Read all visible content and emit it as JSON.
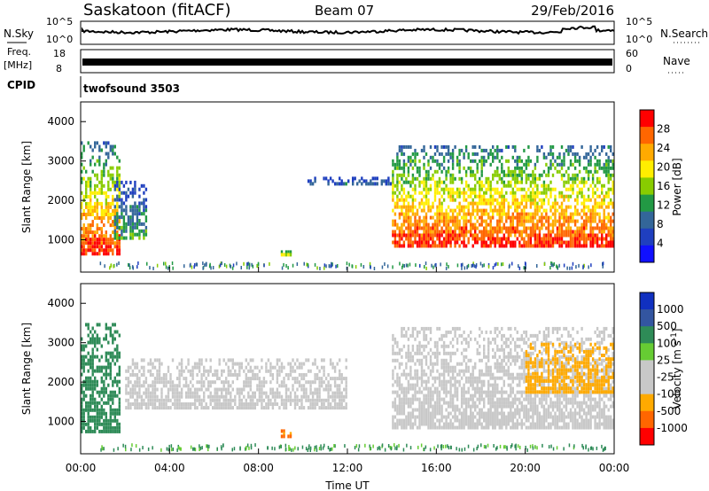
{
  "header": {
    "station": "Saskatoon (fitACF)",
    "beam": "Beam 07",
    "date": "29/Feb/2016"
  },
  "panels": {
    "nsky": {
      "label": "N.Sky",
      "ticks": [
        "10^5",
        "10^0"
      ],
      "right_label": "N.Search",
      "right_ticks": [
        "10^5",
        "10^0"
      ]
    },
    "freq": {
      "label_top": "Freq.",
      "label_unit": "[MHz]",
      "ticks": [
        "18",
        "8"
      ],
      "right_label": "Nave",
      "right_ticks": [
        "60",
        "0"
      ]
    },
    "cpid": {
      "label": "CPID",
      "program": "twofsound 3503"
    }
  },
  "chart_data": [
    {
      "type": "heatmap",
      "name": "power",
      "ylabel": "Slant Range [km]",
      "ylim": [
        180,
        4500
      ],
      "yticks": [
        "4000",
        "3000",
        "2000",
        "1000"
      ],
      "colorbar_label": "Power [dB]",
      "colorbar_ticks": [
        "28",
        "24",
        "20",
        "16",
        "12",
        "8",
        "4"
      ],
      "colorbar_colors": [
        "#ff0000",
        "#ff6600",
        "#ffaa00",
        "#ffee00",
        "#88cc00",
        "#229944",
        "#336699",
        "#1f3fbf",
        "#1010ff"
      ],
      "features": [
        {
          "t_start": 0.0,
          "t_end": 1.8,
          "range_min": 600,
          "range_max": 3500,
          "peak_db": 28
        },
        {
          "t_start": 1.5,
          "t_end": 3.0,
          "range_min": 1000,
          "range_max": 2500,
          "peak_db": 12
        },
        {
          "t_start": 9.0,
          "t_end": 9.5,
          "range_min": 600,
          "range_max": 800,
          "peak_db": 20
        },
        {
          "t_start": 10.0,
          "t_end": 14.0,
          "range_min": 2400,
          "range_max": 2600,
          "peak_db": 8
        },
        {
          "t_start": 14.0,
          "t_end": 24.0,
          "range_min": 800,
          "range_max": 3400,
          "peak_db": 28
        }
      ]
    },
    {
      "type": "heatmap",
      "name": "velocity",
      "ylabel": "Slant Range [km]",
      "ylim": [
        180,
        4500
      ],
      "yticks": [
        "4000",
        "3000",
        "2000",
        "1000"
      ],
      "xlabel": "Time UT",
      "xticks": [
        "00:00",
        "04:00",
        "08:00",
        "12:00",
        "16:00",
        "20:00",
        "00:00"
      ],
      "xlim": [
        0,
        24
      ],
      "colorbar_label": "Velocity",
      "colorbar_unit": "[m s",
      "colorbar_unit_sup": "-1",
      "colorbar_unit_end": "]",
      "colorbar_ticks": [
        "1000",
        "500",
        "100",
        "25",
        "-25",
        "-100",
        "-500",
        "-1000"
      ],
      "colorbar_colors": [
        "#1030c0",
        "#3355a0",
        "#2e8b57",
        "#66cc33",
        "#c8c8c8",
        "#c8c8c8",
        "#ffaa00",
        "#ff6600",
        "#ff0000"
      ],
      "features": [
        {
          "t_start": 0.0,
          "t_end": 1.8,
          "range_min": 700,
          "range_max": 3500,
          "velocity_ms": 100
        },
        {
          "t_start": 2.0,
          "t_end": 12.0,
          "range_min": 1300,
          "range_max": 2600,
          "velocity_ms": 0
        },
        {
          "t_start": 9.0,
          "t_end": 9.5,
          "range_min": 600,
          "range_max": 800,
          "velocity_ms": -500
        },
        {
          "t_start": 14.0,
          "t_end": 24.0,
          "range_min": 800,
          "range_max": 3400,
          "velocity_ms": 0
        },
        {
          "t_start": 20.0,
          "t_end": 24.0,
          "range_min": 1700,
          "range_max": 3000,
          "velocity_ms": -300
        }
      ]
    }
  ]
}
